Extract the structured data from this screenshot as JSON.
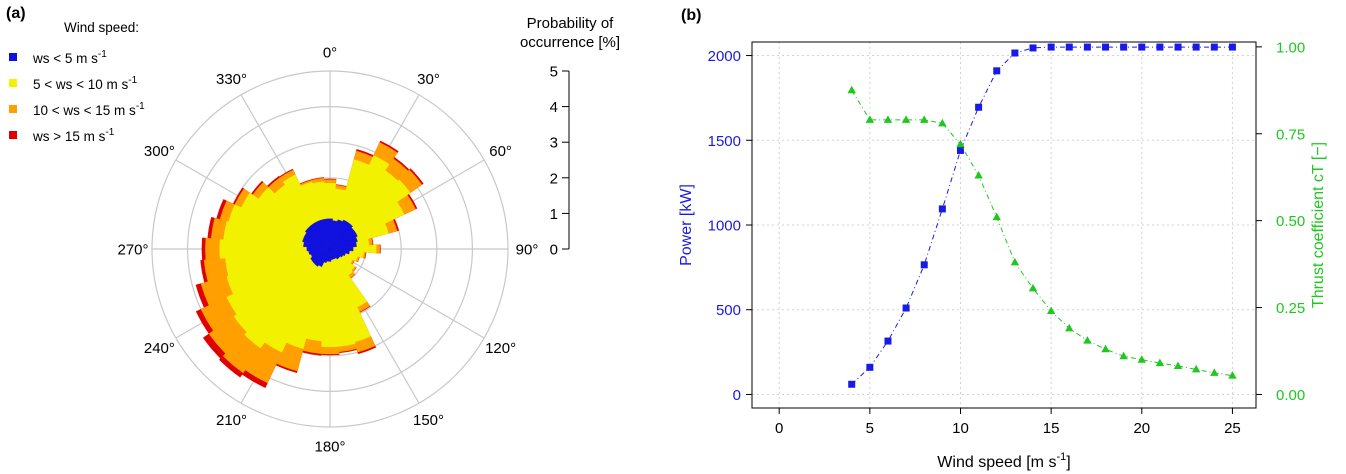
{
  "figure": {
    "panel_a_label": "(a)",
    "panel_b_label": "(b)"
  },
  "chart_data": [
    {
      "type": "wind-rose",
      "panel": "(a)",
      "legend_title": "Wind speed:",
      "legend_placement": "top-left",
      "colors": {
        "ws_lt5": "#1010e0",
        "ws_5_10": "#f2f200",
        "ws_10_15": "#ff9f00",
        "ws_gt15": "#e00000"
      },
      "series": [
        {
          "name": "ws < 5 m s",
          "sup": "-1",
          "color": "#1010e0"
        },
        {
          "name": "5 < ws < 10 m s",
          "sup": "-1",
          "color": "#f2f200"
        },
        {
          "name": "10 < ws < 15 m s",
          "sup": "-1",
          "color": "#ff9f00"
        },
        {
          "name": "ws > 15 m s",
          "sup": "-1",
          "color": "#e00000"
        }
      ],
      "direction_labels": [
        {
          "deg": 0,
          "text": "0°"
        },
        {
          "deg": 30,
          "text": "30°"
        },
        {
          "deg": 60,
          "text": "60°"
        },
        {
          "deg": 90,
          "text": "90°"
        },
        {
          "deg": 120,
          "text": "120°"
        },
        {
          "deg": 150,
          "text": "150°"
        },
        {
          "deg": 180,
          "text": "180°"
        },
        {
          "deg": 210,
          "text": "210°"
        },
        {
          "deg": 240,
          "text": "240°"
        },
        {
          "deg": 270,
          "text": "270°"
        },
        {
          "deg": 300,
          "text": "300°"
        },
        {
          "deg": 330,
          "text": "330°"
        }
      ],
      "radial_title_line1": "Probability of",
      "radial_title_line2": "occurrence [%]",
      "radial_ticks": [
        "0",
        "1",
        "2",
        "3",
        "4",
        "5"
      ],
      "radial_max": 5,
      "sector_width_deg": 10,
      "sectors": [
        {
          "dir": 0,
          "cum": [
            0.85,
            1.85,
            1.95,
            1.97
          ]
        },
        {
          "dir": 10,
          "cum": [
            0.8,
            1.7,
            1.8,
            1.82
          ]
        },
        {
          "dir": 20,
          "cum": [
            0.85,
            2.6,
            2.85,
            2.9
          ]
        },
        {
          "dir": 30,
          "cum": [
            0.9,
            2.9,
            3.3,
            3.35
          ]
        },
        {
          "dir": 40,
          "cum": [
            0.9,
            2.7,
            3.1,
            3.15
          ]
        },
        {
          "dir": 50,
          "cum": [
            0.85,
            2.75,
            3.15,
            3.2
          ]
        },
        {
          "dir": 60,
          "cum": [
            0.85,
            2.3,
            2.65,
            2.7
          ]
        },
        {
          "dir": 70,
          "cum": [
            0.8,
            1.7,
            1.95,
            2.0
          ]
        },
        {
          "dir": 80,
          "cum": [
            0.75,
            1.1,
            1.2,
            1.22
          ]
        },
        {
          "dir": 90,
          "cum": [
            0.65,
            1.3,
            1.4,
            1.42
          ]
        },
        {
          "dir": 100,
          "cum": [
            0.55,
            0.95,
            1.0,
            1.02
          ]
        },
        {
          "dir": 110,
          "cum": [
            0.45,
            0.8,
            0.85,
            0.86
          ]
        },
        {
          "dir": 120,
          "cum": [
            0.4,
            0.7,
            0.75,
            0.76
          ]
        },
        {
          "dir": 130,
          "cum": [
            0.35,
            0.85,
            0.9,
            0.91
          ]
        },
        {
          "dir": 140,
          "cum": [
            0.35,
            0.9,
            1.0,
            1.01
          ]
        },
        {
          "dir": 150,
          "cum": [
            0.3,
            1.8,
            1.95,
            1.97
          ]
        },
        {
          "dir": 160,
          "cum": [
            0.3,
            2.7,
            3.0,
            3.05
          ]
        },
        {
          "dir": 170,
          "cum": [
            0.3,
            2.75,
            2.9,
            2.93
          ]
        },
        {
          "dir": 180,
          "cum": [
            0.35,
            2.75,
            2.95,
            2.98
          ]
        },
        {
          "dir": 190,
          "cum": [
            0.35,
            2.6,
            2.95,
            3.0
          ]
        },
        {
          "dir": 200,
          "cum": [
            0.4,
            2.9,
            3.55,
            3.6
          ]
        },
        {
          "dir": 210,
          "cum": [
            0.55,
            3.2,
            4.15,
            4.3
          ]
        },
        {
          "dir": 220,
          "cum": [
            0.6,
            3.4,
            4.25,
            4.4
          ]
        },
        {
          "dir": 230,
          "cum": [
            0.6,
            3.3,
            4.15,
            4.35
          ]
        },
        {
          "dir": 240,
          "cum": [
            0.6,
            3.2,
            4.0,
            4.15
          ]
        },
        {
          "dir": 250,
          "cum": [
            0.55,
            3.0,
            3.75,
            3.9
          ]
        },
        {
          "dir": 260,
          "cum": [
            0.6,
            2.95,
            3.55,
            3.65
          ]
        },
        {
          "dir": 270,
          "cum": [
            0.65,
            3.1,
            3.5,
            3.6
          ]
        },
        {
          "dir": 280,
          "cum": [
            0.75,
            3.0,
            3.35,
            3.45
          ]
        },
        {
          "dir": 290,
          "cum": [
            0.8,
            2.95,
            3.2,
            3.3
          ]
        },
        {
          "dir": 300,
          "cum": [
            0.8,
            2.75,
            2.95,
            3.0
          ]
        },
        {
          "dir": 310,
          "cum": [
            0.85,
            2.45,
            2.65,
            2.7
          ]
        },
        {
          "dir": 320,
          "cum": [
            0.85,
            2.2,
            2.45,
            2.5
          ]
        },
        {
          "dir": 330,
          "cum": [
            0.85,
            2.3,
            2.45,
            2.48
          ]
        },
        {
          "dir": 340,
          "cum": [
            0.85,
            1.95,
            2.0,
            2.02
          ]
        },
        {
          "dir": 350,
          "cum": [
            0.85,
            1.9,
            2.0,
            2.02
          ]
        }
      ]
    },
    {
      "type": "line",
      "panel": "(b)",
      "xlabel": "Wind speed [m s",
      "xlabel_sup": "-1",
      "xlabel_tail": "]",
      "ylabel": "Power [kW]",
      "y2label": "Thrust coefficient cT [−]",
      "xlim": [
        -1.5,
        26.3
      ],
      "ylim": [
        -80,
        2080
      ],
      "y2lim": [
        -0.039,
        1.014
      ],
      "xticks": [
        "0",
        "5",
        "10",
        "15",
        "20",
        "25"
      ],
      "yticks": [
        "0",
        "500",
        "1000",
        "1500",
        "2000"
      ],
      "y2ticks": [
        "0.00",
        "0.25",
        "0.50",
        "0.75",
        "1.00"
      ],
      "grid": true,
      "colors": {
        "power": "#1a1ae6",
        "thrust": "#1ec81e"
      },
      "x": [
        4,
        5,
        6,
        7,
        8,
        9,
        10,
        11,
        12,
        13,
        14,
        15,
        16,
        17,
        18,
        19,
        20,
        21,
        22,
        23,
        24,
        25
      ],
      "series": [
        {
          "name": "Power [kW]",
          "axis": "left",
          "marker": "square",
          "color": "#1a1ae6",
          "values": [
            60,
            160,
            315,
            510,
            765,
            1095,
            1440,
            1695,
            1910,
            2015,
            2045,
            2050,
            2050,
            2050,
            2050,
            2050,
            2050,
            2050,
            2050,
            2050,
            2050,
            2050
          ]
        },
        {
          "name": "Thrust coefficient cT [−]",
          "axis": "right",
          "marker": "triangle",
          "color": "#1ec81e",
          "values": [
            0.875,
            0.79,
            0.79,
            0.79,
            0.79,
            0.78,
            0.72,
            0.63,
            0.51,
            0.38,
            0.305,
            0.24,
            0.19,
            0.155,
            0.13,
            0.11,
            0.1,
            0.09,
            0.082,
            0.072,
            0.062,
            0.054
          ]
        }
      ]
    }
  ]
}
